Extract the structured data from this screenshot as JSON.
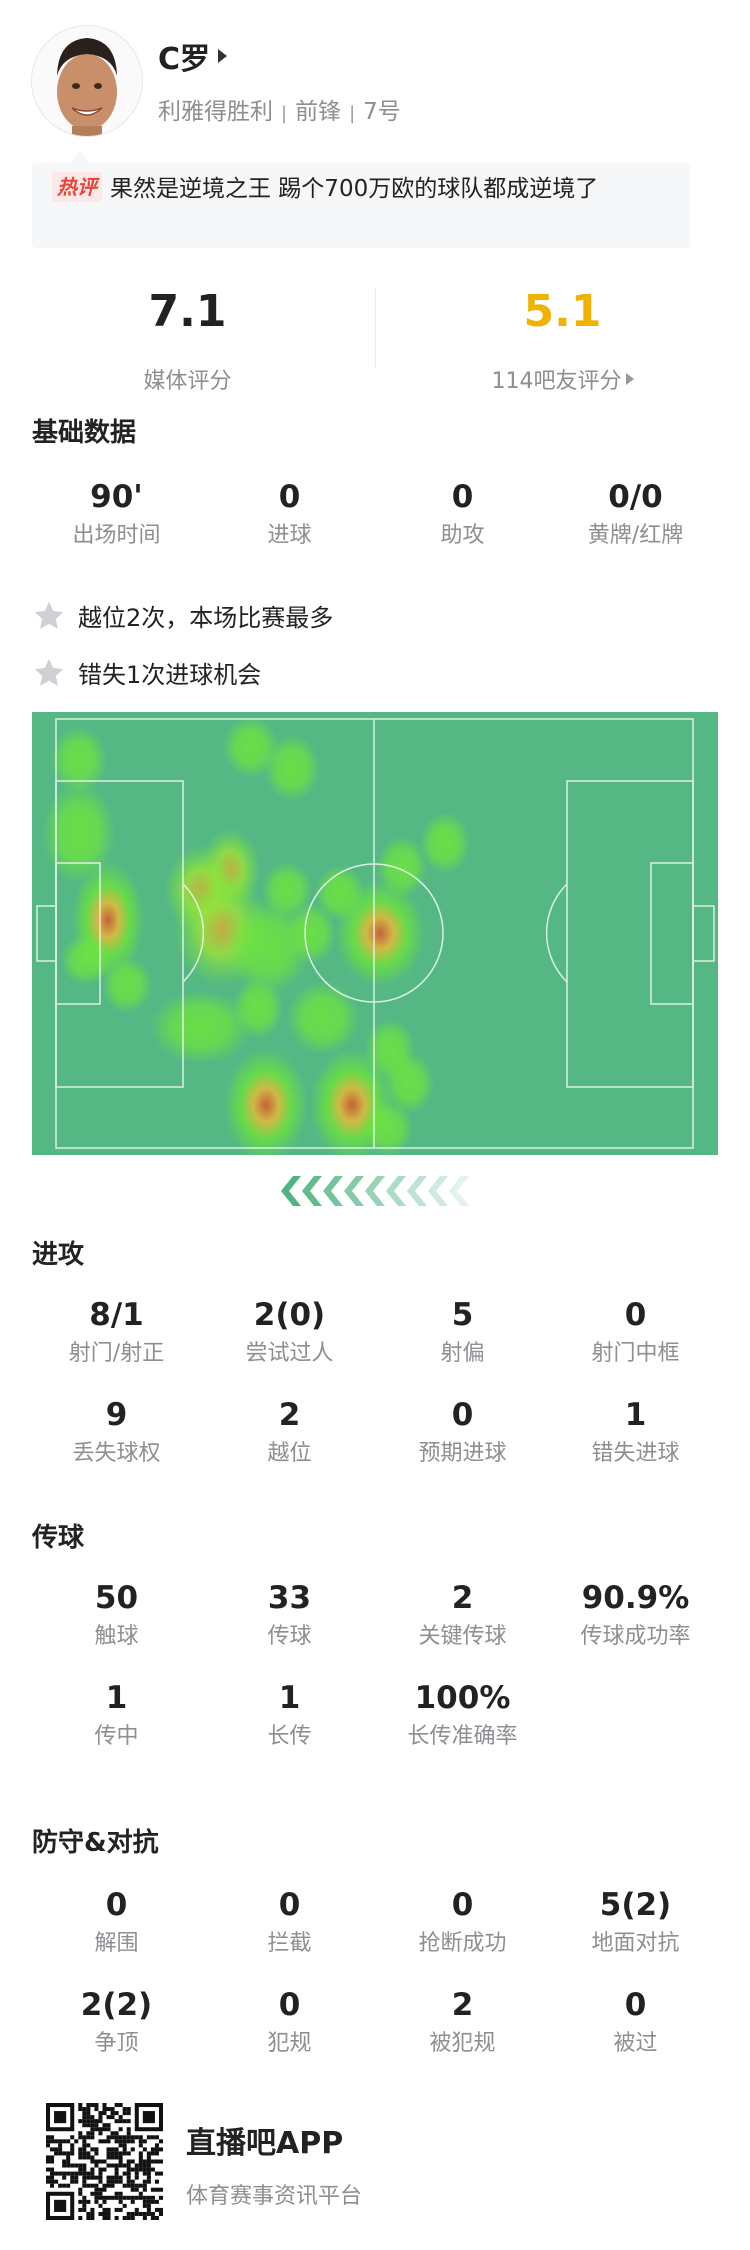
{
  "player": {
    "name": "C罗",
    "team": "利雅得胜利",
    "position": "前锋",
    "number": "7号",
    "avatar_icon": "player-photo"
  },
  "hot_comment": {
    "badge": "热评",
    "text": "果然是逆境之王 踢个700万欧的球队都成逆境了"
  },
  "ratings": {
    "media_value": "7.1",
    "media_label": "媒体评分",
    "fan_value": "5.1",
    "fan_label": "114吧友评分",
    "fan_color": "#f2b200"
  },
  "basic": {
    "title": "基础数据",
    "items": [
      {
        "value": "90'",
        "label": "出场时间"
      },
      {
        "value": "0",
        "label": "进球"
      },
      {
        "value": "0",
        "label": "助攻"
      },
      {
        "value": "0/0",
        "label": "黄牌/红牌"
      }
    ]
  },
  "highlights": [
    {
      "icon": "star-icon",
      "text": "越位2次，本场比赛最多"
    },
    {
      "icon": "star-icon",
      "text": "错失1次进球机会"
    }
  ],
  "heatmap": {
    "pitch_color": "#55b884",
    "attack_direction": "left"
  },
  "attack": {
    "title": "进攻",
    "items": [
      {
        "value": "8/1",
        "label": "射门/射正"
      },
      {
        "value": "2(0)",
        "label": "尝试过人"
      },
      {
        "value": "5",
        "label": "射偏"
      },
      {
        "value": "0",
        "label": "射门中框"
      },
      {
        "value": "9",
        "label": "丢失球权"
      },
      {
        "value": "2",
        "label": "越位"
      },
      {
        "value": "0",
        "label": "预期进球"
      },
      {
        "value": "1",
        "label": "错失进球"
      }
    ]
  },
  "passing": {
    "title": "传球",
    "items": [
      {
        "value": "50",
        "label": "触球"
      },
      {
        "value": "33",
        "label": "传球"
      },
      {
        "value": "2",
        "label": "关键传球"
      },
      {
        "value": "90.9%",
        "label": "传球成功率"
      },
      {
        "value": "1",
        "label": "传中"
      },
      {
        "value": "1",
        "label": "长传"
      },
      {
        "value": "100%",
        "label": "长传准确率"
      }
    ]
  },
  "defense": {
    "title": "防守&对抗",
    "items": [
      {
        "value": "0",
        "label": "解围"
      },
      {
        "value": "0",
        "label": "拦截"
      },
      {
        "value": "0",
        "label": "抢断成功"
      },
      {
        "value": "5(2)",
        "label": "地面对抗"
      },
      {
        "value": "2(2)",
        "label": "争顶"
      },
      {
        "value": "0",
        "label": "犯规"
      },
      {
        "value": "2",
        "label": "被犯规"
      },
      {
        "value": "0",
        "label": "被过"
      }
    ]
  },
  "footer": {
    "app_name": "直播吧APP",
    "tagline": "体育赛事资讯平台"
  }
}
